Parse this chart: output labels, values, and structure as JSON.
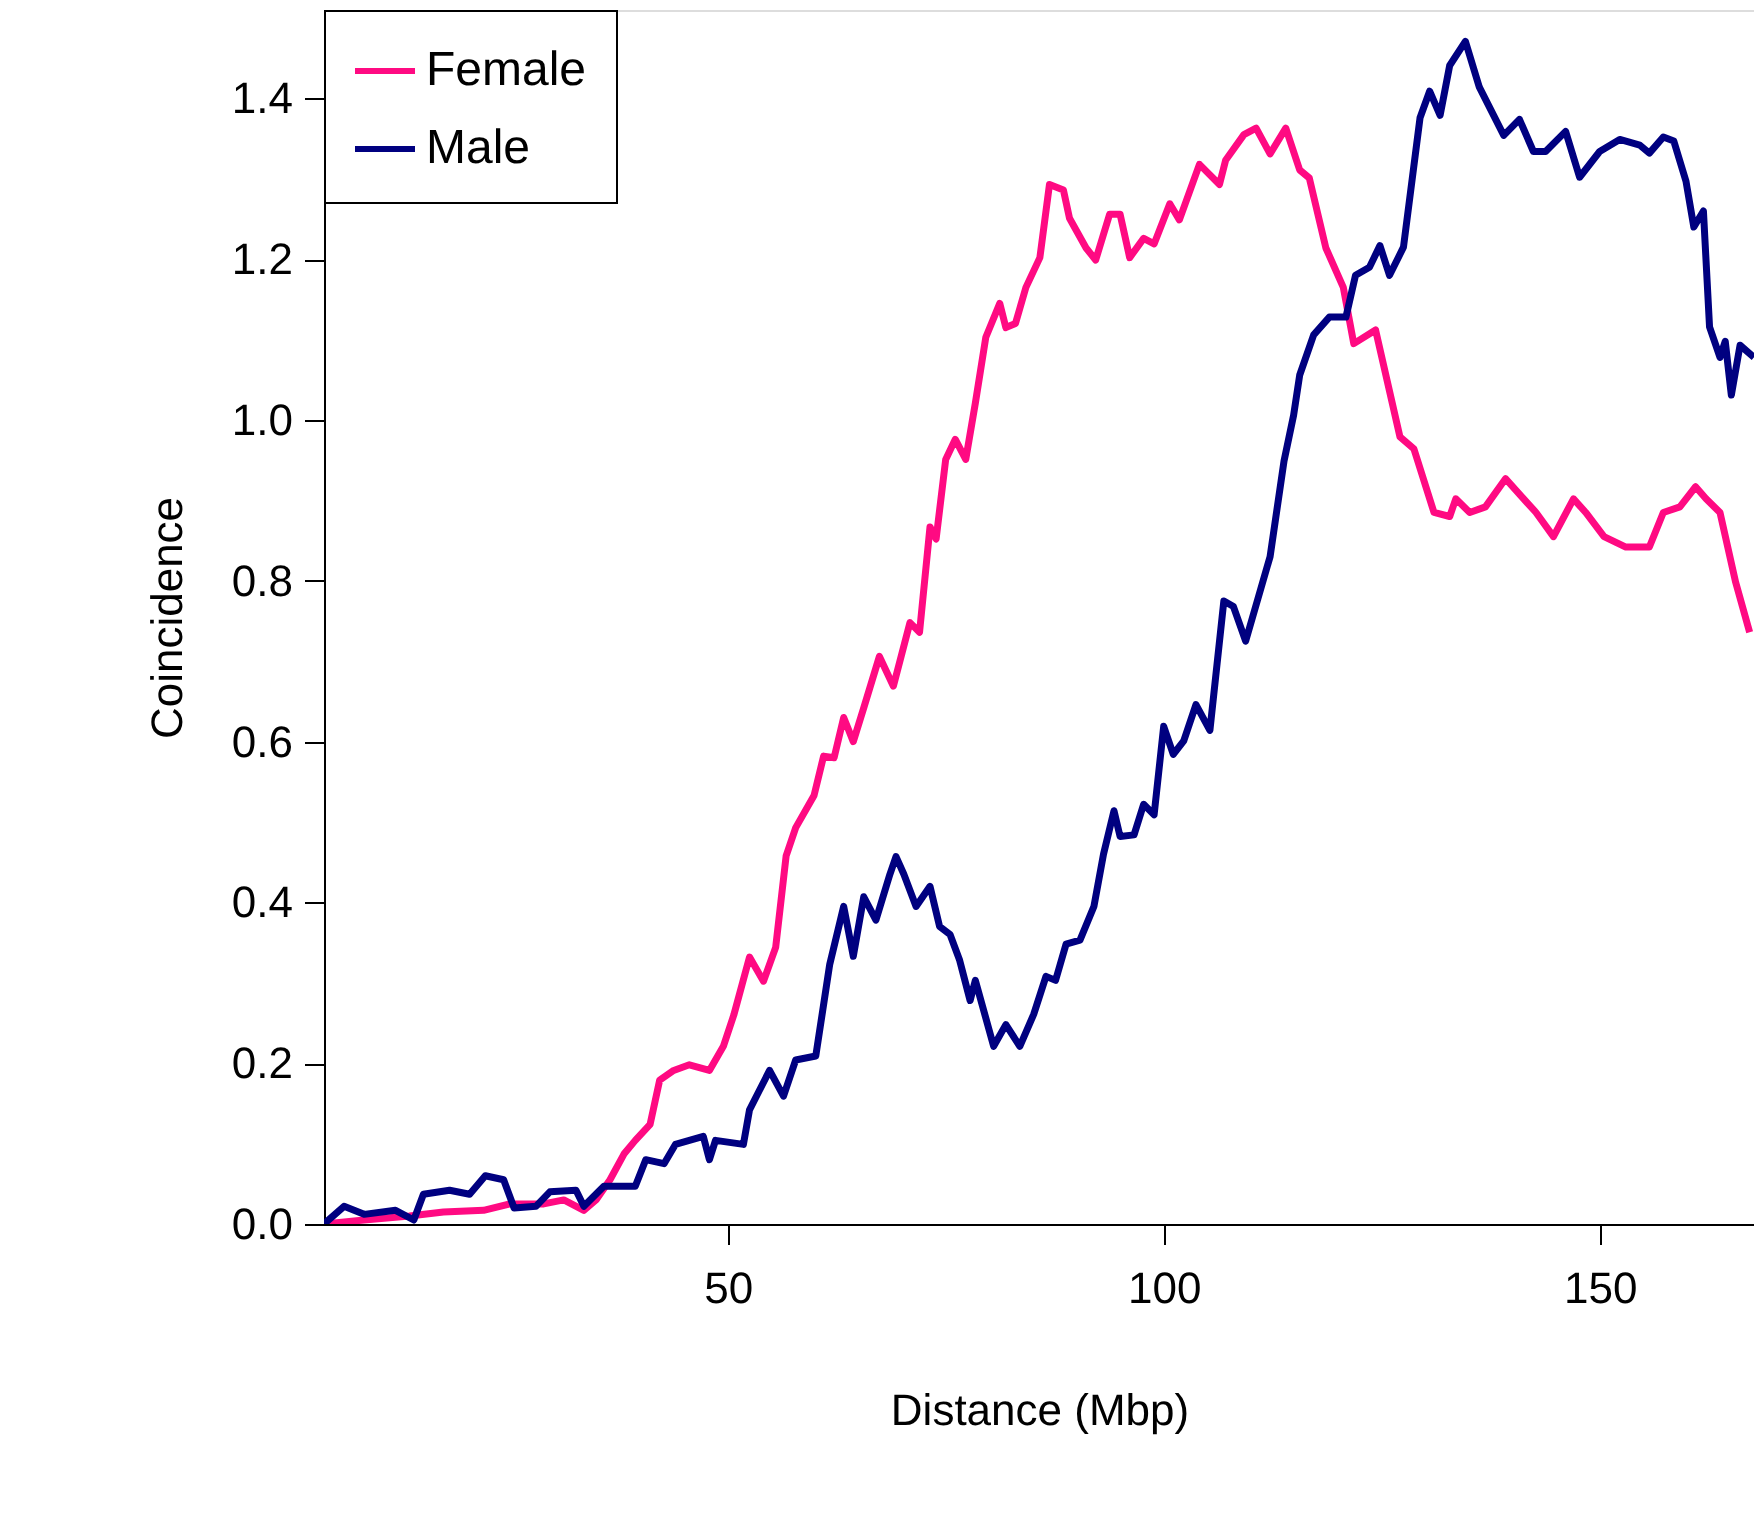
{
  "chart_data": {
    "type": "line",
    "xlabel": "Distance (Mbp)",
    "ylabel": "Coincidence",
    "xlim": [
      3.7,
      167.7
    ],
    "ylim": [
      0,
      1.51
    ],
    "xticks": [
      50,
      100,
      150
    ],
    "yticks": [
      {
        "value": 0,
        "label": "0.0"
      },
      {
        "value": 0.2,
        "label": "0.2"
      },
      {
        "value": 0.4,
        "label": "0.4"
      },
      {
        "value": 0.6,
        "label": "0.6"
      },
      {
        "value": 0.8,
        "label": "0.8"
      },
      {
        "value": 1.0,
        "label": "1.0"
      },
      {
        "value": 1.2,
        "label": "1.2"
      },
      {
        "value": 1.4,
        "label": "1.4"
      }
    ],
    "grid": false,
    "legend": "top left",
    "series": [
      {
        "name": "Female",
        "color": "#ff0a82",
        "x": [
          3.7,
          8.3,
          13.5,
          17.4,
          22,
          25,
          28.9,
          31.2,
          33.5,
          34.9,
          36.5,
          38.1,
          39.4,
          41.1,
          42.2,
          43.8,
          45.6,
          47.9,
          49.5,
          50.7,
          52.5,
          54.1,
          55.5,
          56.7,
          57.8,
          59.9,
          61,
          62.2,
          63.3,
          64.4,
          65.6,
          67.4,
          69,
          70.9,
          72,
          73.2,
          73.9,
          75,
          76.1,
          77.3,
          78.4,
          79.6,
          81.2,
          81.9,
          83,
          84.2,
          85.8,
          86.9,
          88.5,
          89.2,
          91.1,
          92.2,
          93.8,
          95,
          96.1,
          97.7,
          98.9,
          100.7,
          101.8,
          104.1,
          106.4,
          107.1,
          109.2,
          110.6,
          112.2,
          114,
          115.6,
          116.7,
          118.6,
          120.6,
          121.8,
          124.3,
          127.1,
          128.7,
          131,
          132.8,
          133.5,
          135.1,
          136.9,
          139.2,
          142.7,
          144.7,
          147,
          148.4,
          150.5,
          153,
          155.7,
          157.3,
          159.2,
          161,
          162.2,
          163.8,
          165.6,
          167.2
        ],
        "values": [
          0,
          0.005,
          0.01,
          0.015,
          0.017,
          0.025,
          0.025,
          0.03,
          0.017,
          0.03,
          0.055,
          0.087,
          0.104,
          0.124,
          0.179,
          0.191,
          0.198,
          0.191,
          0.221,
          0.26,
          0.332,
          0.302,
          0.344,
          0.458,
          0.493,
          0.533,
          0.582,
          0.58,
          0.63,
          0.6,
          0.642,
          0.706,
          0.669,
          0.748,
          0.736,
          0.867,
          0.852,
          0.951,
          0.976,
          0.951,
          1.021,
          1.103,
          1.145,
          1.115,
          1.12,
          1.165,
          1.202,
          1.293,
          1.286,
          1.251,
          1.214,
          1.199,
          1.256,
          1.256,
          1.202,
          1.226,
          1.219,
          1.269,
          1.249,
          1.318,
          1.293,
          1.323,
          1.355,
          1.363,
          1.331,
          1.363,
          1.311,
          1.301,
          1.214,
          1.165,
          1.095,
          1.112,
          0.979,
          0.964,
          0.885,
          0.88,
          0.902,
          0.885,
          0.892,
          0.927,
          0.885,
          0.855,
          0.902,
          0.885,
          0.855,
          0.842,
          0.842,
          0.885,
          0.892,
          0.917,
          0.902,
          0.885,
          0.798,
          0.736
        ]
      },
      {
        "name": "Male",
        "color": "#000080",
        "x": [
          3.7,
          6,
          8.3,
          11.9,
          14,
          15.1,
          18.1,
          20.4,
          22.2,
          24.3,
          25.5,
          28,
          29.6,
          32.6,
          33.5,
          35.8,
          39.4,
          40.6,
          42.7,
          44,
          47.2,
          47.9,
          48.6,
          51.8,
          52.5,
          54.8,
          56.4,
          57.8,
          60.1,
          61.7,
          63.3,
          64.4,
          65.6,
          67,
          68.6,
          69.3,
          70.2,
          71.6,
          73.2,
          74.3,
          75.5,
          76.6,
          77.8,
          78.4,
          80.5,
          81.9,
          83.5,
          85.1,
          86.5,
          87.6,
          88.8,
          90.4,
          92,
          93.1,
          94.3,
          95,
          96.6,
          97.7,
          98.9,
          100,
          101.1,
          102.3,
          103.7,
          105.3,
          106.9,
          108,
          109.4,
          112.2,
          113.8,
          114.9,
          115.6,
          117.2,
          119,
          120.9,
          122,
          123.6,
          124.8,
          125.9,
          127.5,
          129.4,
          130.5,
          131.7,
          132.8,
          134.6,
          136.2,
          139,
          140.8,
          142.4,
          143.8,
          146.1,
          147.7,
          150,
          152.3,
          154.6,
          155.7,
          157.3,
          158.5,
          159.9,
          160.8,
          161.9,
          162.6,
          163.8,
          164.4,
          165.1,
          166.1,
          167.7
        ],
        "values": [
          0,
          0.022,
          0.012,
          0.017,
          0.005,
          0.037,
          0.042,
          0.037,
          0.06,
          0.055,
          0.02,
          0.022,
          0.04,
          0.042,
          0.022,
          0.047,
          0.047,
          0.08,
          0.075,
          0.099,
          0.109,
          0.08,
          0.104,
          0.099,
          0.142,
          0.191,
          0.159,
          0.204,
          0.209,
          0.323,
          0.395,
          0.333,
          0.407,
          0.378,
          0.435,
          0.457,
          0.435,
          0.395,
          0.42,
          0.37,
          0.36,
          0.328,
          0.278,
          0.303,
          0.221,
          0.248,
          0.221,
          0.261,
          0.308,
          0.303,
          0.348,
          0.353,
          0.395,
          0.46,
          0.514,
          0.482,
          0.484,
          0.522,
          0.509,
          0.619,
          0.584,
          0.601,
          0.646,
          0.614,
          0.775,
          0.768,
          0.725,
          0.83,
          0.949,
          1.006,
          1.056,
          1.106,
          1.128,
          1.128,
          1.18,
          1.19,
          1.217,
          1.18,
          1.215,
          1.376,
          1.409,
          1.379,
          1.441,
          1.471,
          1.414,
          1.354,
          1.374,
          1.334,
          1.334,
          1.359,
          1.302,
          1.334,
          1.349,
          1.342,
          1.332,
          1.352,
          1.347,
          1.297,
          1.24,
          1.26,
          1.116,
          1.078,
          1.098,
          1.031,
          1.093,
          1.078
        ]
      }
    ]
  }
}
